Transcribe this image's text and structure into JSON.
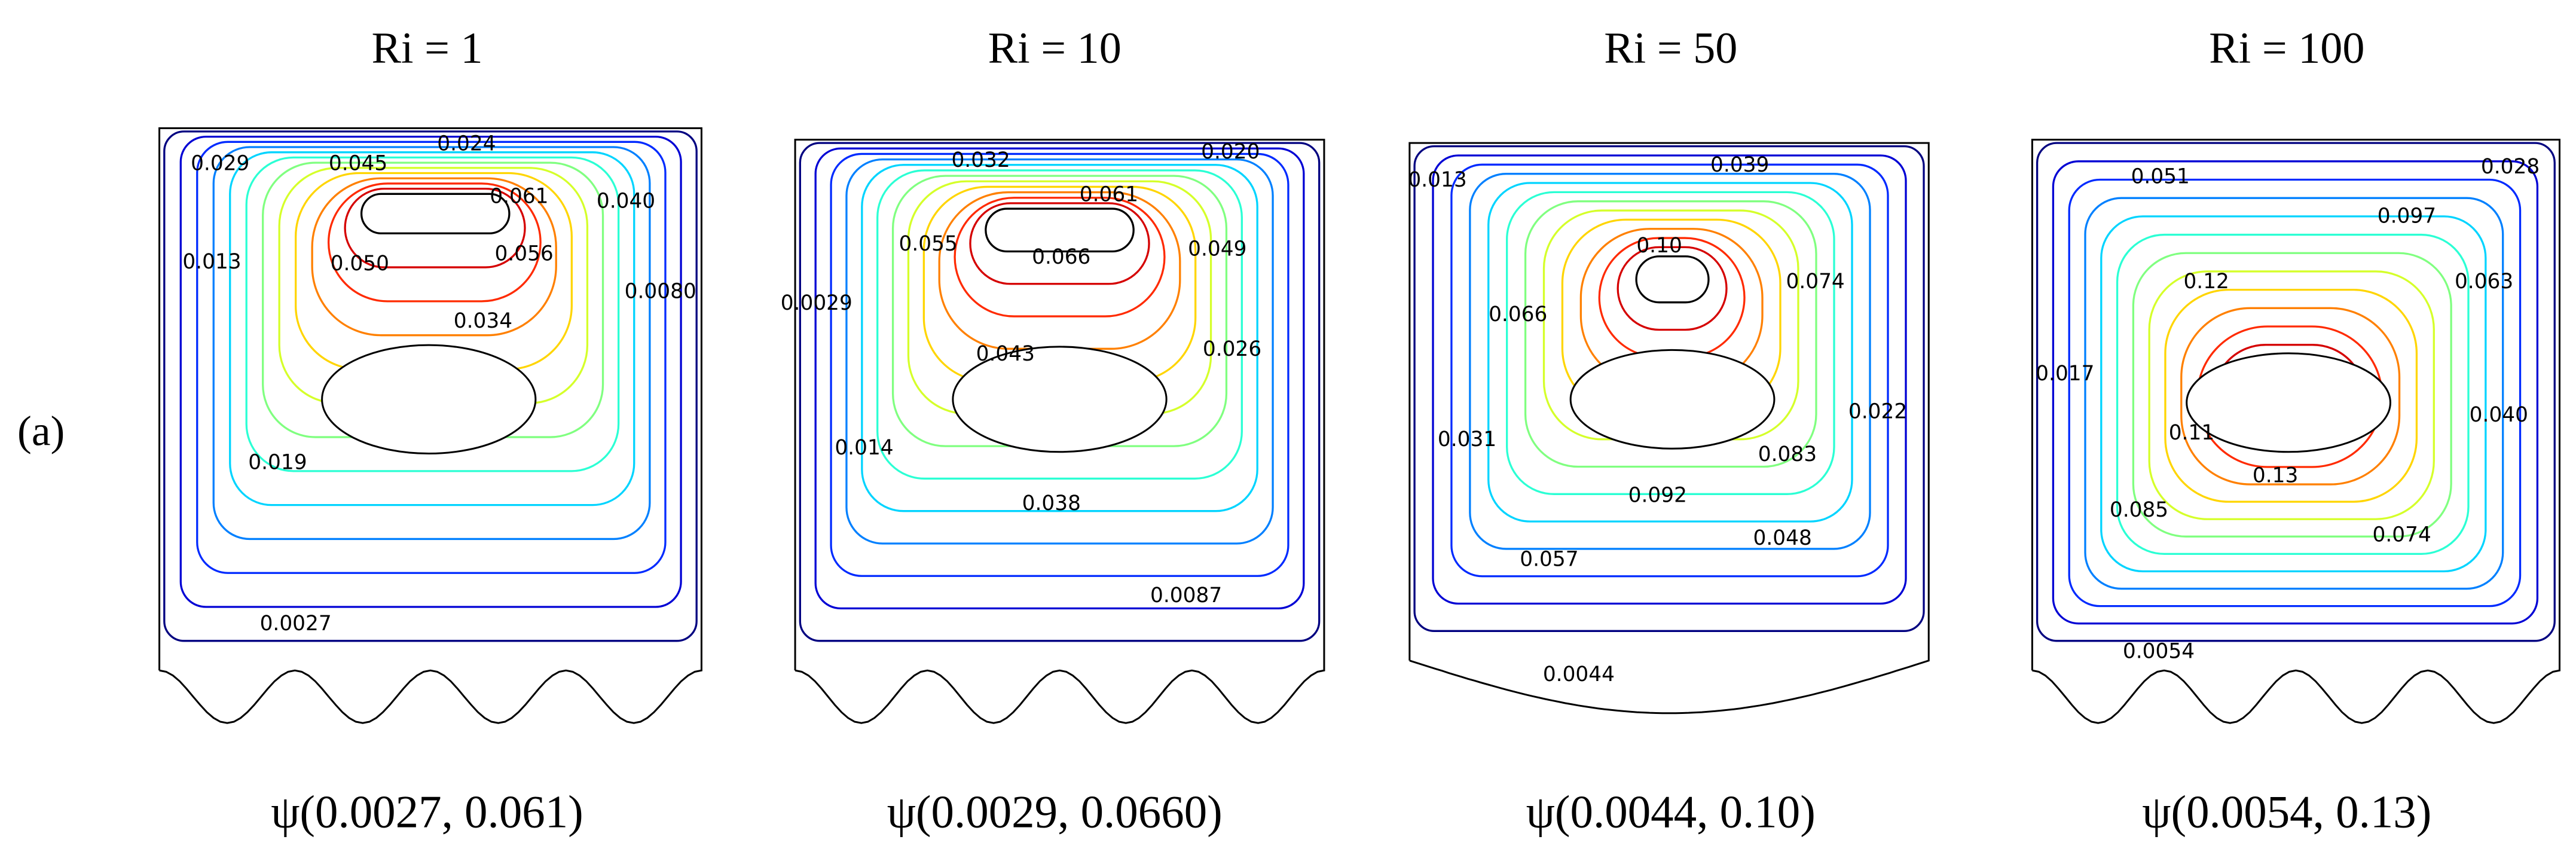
{
  "panel_label": "(a)",
  "panels": [
    {
      "title": "Ri = 1",
      "caption": "ψ(0.0027, 0.061)",
      "contour_labels": [
        "0.024",
        "0.029",
        "0.045",
        "0.061",
        "0.040",
        "0.013",
        "0.050",
        "0.056",
        "0.0080",
        "0.034",
        "0.019",
        "0.0027"
      ]
    },
    {
      "title": "Ri = 10",
      "caption": "ψ(0.0029, 0.0660)",
      "contour_labels": [
        "0.032",
        "0.020",
        "0.061",
        "0.055",
        "0.066",
        "0.049",
        "0.0029",
        "0.043",
        "0.026",
        "0.014",
        "0.038",
        "0.0087"
      ]
    },
    {
      "title": "Ri = 50",
      "caption": "ψ(0.0044, 0.10)",
      "contour_labels": [
        "0.013",
        "0.039",
        "0.10",
        "0.066",
        "0.074",
        "0.022",
        "0.031",
        "0.083",
        "0.092",
        "0.048",
        "0.057",
        "0.0044"
      ]
    },
    {
      "title": "Ri = 100",
      "caption": "ψ(0.0054, 0.13)",
      "contour_labels": [
        "0.051",
        "0.028",
        "0.097",
        "0.12",
        "0.063",
        "0.017",
        "0.040",
        "0.11",
        "0.13",
        "0.085",
        "0.074",
        "0.0054"
      ]
    }
  ]
}
